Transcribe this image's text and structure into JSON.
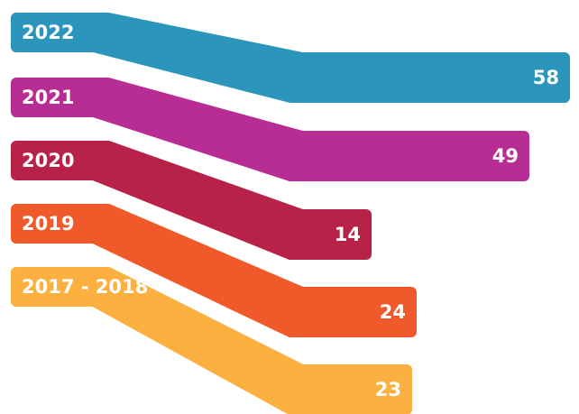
{
  "chart_data": {
    "type": "bar",
    "categories": [
      "2022",
      "2021",
      "2020",
      "2019",
      "2017 - 2018"
    ],
    "values": [
      58,
      49,
      14,
      24,
      23
    ],
    "colors": [
      "#2b95bb",
      "#b82d94",
      "#b82248",
      "#f05a2a",
      "#fbb040"
    ]
  }
}
